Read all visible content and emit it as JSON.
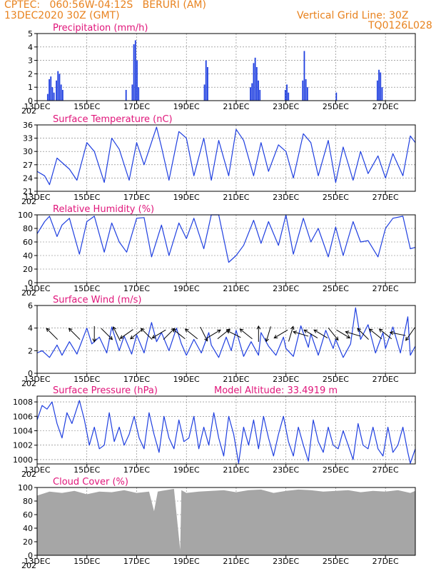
{
  "header": {
    "line1_left": "CPTEC:   060:56W-04:12S   BERURI (AM)",
    "line2_left": "13DEC2020 30Z (GMT)",
    "line1_right": "Vertical Grid Line: 30Z",
    "line2_right": "TQ0126L028"
  },
  "colors": {
    "series": "#1f3fe0",
    "cloud": "#a6a6a6",
    "title": "#e0157a",
    "header": "#e8821e"
  },
  "x_axis": {
    "tick_labels": [
      "13DEC",
      "15DEC",
      "17DEC",
      "19DEC",
      "21DEC",
      "23DEC",
      "25DEC",
      "27DEC"
    ],
    "tick_days": [
      13,
      15,
      17,
      19,
      21,
      23,
      25,
      27
    ],
    "day_range": [
      13,
      28.2
    ],
    "under_label": "202"
  },
  "chart_data": [
    {
      "id": "precip",
      "type": "bar",
      "title": "Precipitation (mm/h)",
      "ylim": [
        0,
        5
      ],
      "yticks": [
        0,
        1,
        2,
        3,
        4,
        5
      ],
      "events": [
        {
          "day": 13.4,
          "values": [
            0.5,
            1.6,
            1.8,
            1.0,
            0.6
          ]
        },
        {
          "day": 13.75,
          "values": [
            1.5,
            2.2,
            2.0,
            1.2,
            0.8
          ]
        },
        {
          "day": 16.55,
          "values": [
            0.8
          ]
        },
        {
          "day": 16.8,
          "values": [
            1.2,
            4.2,
            4.5,
            3.0,
            1.0
          ]
        },
        {
          "day": 19.7,
          "values": [
            1.2,
            3.0,
            2.5
          ]
        },
        {
          "day": 21.55,
          "values": [
            1.0,
            1.3,
            2.8,
            3.2,
            2.5,
            1.5,
            0.8
          ]
        },
        {
          "day": 22.95,
          "values": [
            0.8,
            1.2,
            0.6
          ]
        },
        {
          "day": 23.65,
          "values": [
            1.5,
            3.7,
            1.6,
            1.0
          ]
        },
        {
          "day": 25.0,
          "values": [
            0.6
          ]
        },
        {
          "day": 26.65,
          "values": [
            1.5,
            2.3,
            2.1,
            1.0
          ]
        }
      ]
    },
    {
      "id": "temp",
      "type": "line",
      "title": "Surface Temperature (nC)",
      "ylim": [
        21,
        36
      ],
      "yticks": [
        21,
        24,
        27,
        30,
        33,
        36
      ],
      "x": [
        13,
        13.3,
        13.5,
        13.8,
        14.3,
        14.6,
        15,
        15.3,
        15.7,
        16,
        16.3,
        16.7,
        17,
        17.3,
        17.8,
        18,
        18.3,
        18.7,
        19,
        19.3,
        19.7,
        20,
        20.3,
        20.7,
        21,
        21.3,
        21.7,
        22,
        22.3,
        22.7,
        23,
        23.3,
        23.7,
        24,
        24.3,
        24.7,
        25,
        25.3,
        25.7,
        26,
        26.3,
        26.7,
        27,
        27.3,
        27.7,
        28,
        28.2
      ],
      "y": [
        25.5,
        24.5,
        22.5,
        28.5,
        26.0,
        23.5,
        32.0,
        30.0,
        23.0,
        33.0,
        30.5,
        23.5,
        32.0,
        27.0,
        35.5,
        31.0,
        23.5,
        34.5,
        33.0,
        24.5,
        33.0,
        23.5,
        32.5,
        24.5,
        35.0,
        32.5,
        24.5,
        32.0,
        25.5,
        31.5,
        30.0,
        24.0,
        34.0,
        32.0,
        24.5,
        32.5,
        23.0,
        31.0,
        23.5,
        30.0,
        25.0,
        29.0,
        24.0,
        29.5,
        24.5,
        33.5,
        32.0
      ]
    },
    {
      "id": "rh",
      "type": "line",
      "title": "Relative Humidity (%)",
      "ylim": [
        0,
        100
      ],
      "yticks": [
        0,
        20,
        40,
        60,
        80,
        100
      ],
      "x": [
        13,
        13.3,
        13.5,
        13.8,
        14,
        14.3,
        14.7,
        15,
        15.3,
        15.7,
        16,
        16.3,
        16.6,
        17,
        17.3,
        17.6,
        18,
        18.3,
        18.7,
        19,
        19.3,
        19.7,
        20,
        20.3,
        20.7,
        21,
        21.3,
        21.7,
        22,
        22.3,
        22.7,
        23,
        23.3,
        23.7,
        24,
        24.3,
        24.7,
        25,
        25.3,
        25.7,
        26,
        26.3,
        26.7,
        27,
        27.3,
        27.7,
        28,
        28.2
      ],
      "y": [
        72,
        90,
        98,
        68,
        85,
        95,
        42,
        90,
        98,
        45,
        88,
        60,
        45,
        95,
        96,
        38,
        85,
        40,
        88,
        65,
        95,
        50,
        100,
        100,
        30,
        40,
        55,
        92,
        58,
        90,
        55,
        100,
        42,
        95,
        60,
        80,
        38,
        82,
        40,
        90,
        60,
        62,
        38,
        80,
        95,
        98,
        50,
        52
      ]
    },
    {
      "id": "wind",
      "type": "line",
      "title": "Surface Wind (m/s)",
      "ylim": [
        0,
        6
      ],
      "yticks": [
        0,
        2,
        4,
        6
      ],
      "x": [
        13,
        13.2,
        13.5,
        13.8,
        14,
        14.3,
        14.6,
        15,
        15.2,
        15.5,
        15.8,
        16,
        16.3,
        16.5,
        16.8,
        17,
        17.3,
        17.6,
        17.8,
        18,
        18.3,
        18.6,
        18.8,
        19,
        19.3,
        19.6,
        19.9,
        20,
        20.3,
        20.6,
        20.8,
        21,
        21.3,
        21.6,
        21.9,
        22,
        22.3,
        22.6,
        22.9,
        23,
        23.3,
        23.6,
        23.9,
        24,
        24.3,
        24.6,
        24.9,
        25,
        25.3,
        25.6,
        25.8,
        26,
        26.3,
        26.6,
        26.9,
        27,
        27.3,
        27.6,
        27.9,
        28,
        28.2
      ],
      "y": [
        1.8,
        2.0,
        1.4,
        2.5,
        1.6,
        2.8,
        1.7,
        4.0,
        2.6,
        3.2,
        1.8,
        4.1,
        2.0,
        3.3,
        1.7,
        3.4,
        1.8,
        4.5,
        2.8,
        3.6,
        2.0,
        4.0,
        2.6,
        1.6,
        3.0,
        1.8,
        3.6,
        2.5,
        1.4,
        3.2,
        2.0,
        3.8,
        1.5,
        2.8,
        1.6,
        3.6,
        2.4,
        1.6,
        3.2,
        2.2,
        1.5,
        4.2,
        2.3,
        3.5,
        1.6,
        3.8,
        2.2,
        3.0,
        1.4,
        2.6,
        5.8,
        3.0,
        4.3,
        1.8,
        3.6,
        2.2,
        4.1,
        1.8,
        5.0,
        1.6,
        2.4
      ],
      "arrows": [
        {
          "day": 13.6,
          "u": -1,
          "v": 1
        },
        {
          "day": 14.5,
          "u": -1,
          "v": 1
        },
        {
          "day": 15.3,
          "u": 0,
          "v": -1
        },
        {
          "day": 15.8,
          "u": 1,
          "v": -1
        },
        {
          "day": 16.2,
          "u": -0.5,
          "v": 1
        },
        {
          "day": 16.6,
          "u": -1,
          "v": -0.7
        },
        {
          "day": 17.0,
          "u": -1,
          "v": -0.8
        },
        {
          "day": 17.4,
          "u": -0.8,
          "v": 0.8
        },
        {
          "day": 17.9,
          "u": -1,
          "v": -0.6
        },
        {
          "day": 18.3,
          "u": 1,
          "v": 1
        },
        {
          "day": 18.7,
          "u": -1,
          "v": 0.8
        },
        {
          "day": 19.2,
          "u": -1,
          "v": 0.8
        },
        {
          "day": 19.7,
          "u": 0.5,
          "v": -1
        },
        {
          "day": 20.1,
          "u": 1,
          "v": 0.6
        },
        {
          "day": 20.5,
          "u": 1,
          "v": 0.8
        },
        {
          "day": 20.9,
          "u": -1,
          "v": 0.5
        },
        {
          "day": 21.4,
          "u": -1,
          "v": 0.8
        },
        {
          "day": 21.9,
          "u": 0,
          "v": 1
        },
        {
          "day": 22.3,
          "u": -0.3,
          "v": -1
        },
        {
          "day": 22.8,
          "u": -1,
          "v": -0.6
        },
        {
          "day": 23.2,
          "u": 0.3,
          "v": 1
        },
        {
          "day": 23.6,
          "u": -1,
          "v": 0.3
        },
        {
          "day": 24.0,
          "u": -1,
          "v": 0.6
        },
        {
          "day": 24.4,
          "u": -1,
          "v": 0.6
        },
        {
          "day": 24.9,
          "u": 0.8,
          "v": -1
        },
        {
          "day": 25.3,
          "u": 1,
          "v": -0.6
        },
        {
          "day": 25.7,
          "u": -1,
          "v": 0.3
        },
        {
          "day": 26.1,
          "u": -0.8,
          "v": 0.8
        },
        {
          "day": 26.6,
          "u": -1,
          "v": 0.8
        },
        {
          "day": 27.0,
          "u": -1,
          "v": 0.8
        },
        {
          "day": 27.5,
          "u": -1,
          "v": 0.2
        },
        {
          "day": 28.0,
          "u": -0.7,
          "v": -1
        }
      ]
    },
    {
      "id": "pres",
      "type": "line",
      "title": "Surface Pressure (hPa)",
      "annotation": "Model Altitude: 33.4919 m",
      "ylim": [
        999.4,
        1008.8
      ],
      "yticks": [
        1000,
        1002,
        1004,
        1006,
        1008
      ],
      "x": [
        13,
        13.2,
        13.4,
        13.6,
        13.8,
        14,
        14.2,
        14.4,
        14.7,
        14.9,
        15.1,
        15.3,
        15.5,
        15.7,
        15.9,
        16.1,
        16.3,
        16.5,
        16.7,
        16.9,
        17.1,
        17.3,
        17.5,
        17.7,
        17.9,
        18.1,
        18.3,
        18.5,
        18.7,
        18.9,
        19.1,
        19.3,
        19.5,
        19.7,
        19.9,
        20.1,
        20.3,
        20.5,
        20.7,
        20.9,
        21.1,
        21.3,
        21.5,
        21.7,
        21.9,
        22.1,
        22.3,
        22.5,
        22.7,
        22.9,
        23.1,
        23.3,
        23.5,
        23.7,
        23.9,
        24.1,
        24.3,
        24.5,
        24.7,
        24.9,
        25.1,
        25.3,
        25.5,
        25.7,
        25.9,
        26.1,
        26.3,
        26.5,
        26.7,
        26.9,
        27.1,
        27.3,
        27.5,
        27.7,
        27.9,
        28.0,
        28.2
      ],
      "y": [
        1005.5,
        1007.5,
        1007.0,
        1008.0,
        1005.0,
        1003.0,
        1006.5,
        1005.0,
        1008.2,
        1005.5,
        1002.0,
        1004.5,
        1001.5,
        1002.0,
        1006.5,
        1002.5,
        1004.5,
        1002.0,
        1003.5,
        1006.0,
        1003.0,
        1001.5,
        1006.5,
        1003.5,
        1001.0,
        1006.0,
        1003.0,
        1001.5,
        1005.5,
        1002.5,
        1003.0,
        1006.0,
        1001.5,
        1004.5,
        1002.0,
        1006.5,
        1003.0,
        1000.5,
        1006.0,
        1003.5,
        999.5,
        1004.5,
        1002.0,
        1005.5,
        1001.5,
        1006.0,
        1003.0,
        1000.5,
        1003.5,
        1006.0,
        1002.5,
        1000.5,
        1004.5,
        1002.0,
        999.8,
        1005.5,
        1002.5,
        1001.0,
        1004.5,
        1002.0,
        1001.5,
        1004.0,
        1002.0,
        1000.0,
        1005.0,
        1002.0,
        1001.5,
        1004.5,
        1001.5,
        1000.5,
        1004.5,
        1001.0,
        1002.0,
        1004.5,
        1001.0,
        999.5,
        1001.5
      ]
    },
    {
      "id": "cloud",
      "type": "area",
      "title": "Cloud Cover (%)",
      "ylim": [
        0,
        100
      ],
      "yticks": [
        0,
        20,
        40,
        60,
        80,
        100
      ],
      "x": [
        13,
        13.5,
        14,
        14.5,
        15,
        15.5,
        16,
        16.5,
        17,
        17.5,
        17.7,
        17.85,
        18,
        18.5,
        18.75,
        18.8,
        19,
        19.5,
        20,
        20.5,
        21,
        21.5,
        22,
        22.5,
        23,
        23.5,
        24,
        24.5,
        25,
        25.5,
        26,
        26.5,
        27,
        27.5,
        28,
        28.2
      ],
      "y": [
        88,
        94,
        92,
        95,
        90,
        94,
        93,
        96,
        92,
        94,
        65,
        94,
        95,
        98,
        8,
        96,
        92,
        94,
        95,
        96,
        93,
        96,
        97,
        92,
        95,
        97,
        96,
        94,
        95,
        96,
        93,
        95,
        94,
        96,
        92,
        95
      ]
    }
  ]
}
